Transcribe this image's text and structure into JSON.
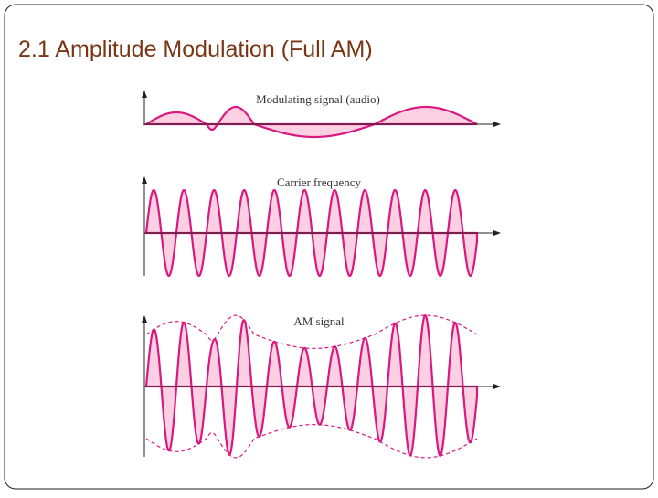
{
  "header": {
    "title": "2.1  Amplitude Modulation (Full AM)"
  },
  "panels": [
    {
      "label": "Modulating signal (audio)"
    },
    {
      "label": "Carrier frequency"
    },
    {
      "label": "AM signal"
    }
  ]
}
